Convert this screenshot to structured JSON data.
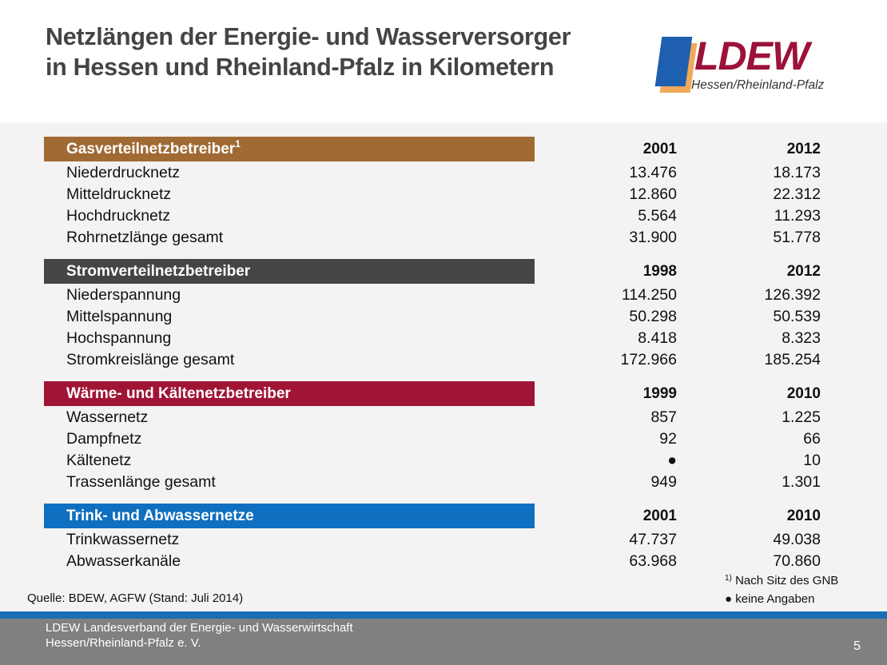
{
  "header": {
    "title_line1": "Netzlängen der Energie- und Wasserversorger",
    "title_line2": "in Hessen und Rheinland-Pfalz in Kilometern",
    "logo": {
      "text": "LDEW",
      "subtitle": "Hessen/Rheinland-Pfalz",
      "colors": {
        "text": "#9c1238",
        "blue": "#1f5fb0",
        "orange": "#f1a95a"
      }
    }
  },
  "sections": [
    {
      "title": "Gasverteilnetzbetreiber",
      "footnote_mark": "1",
      "color": "#a06a35",
      "years": [
        "2001",
        "2012"
      ],
      "rows": [
        {
          "label": "Niederdrucknetz",
          "v1": "13.476",
          "v2": "18.173"
        },
        {
          "label": "Mitteldrucknetz",
          "v1": "12.860",
          "v2": "22.312"
        },
        {
          "label": "Hochdrucknetz",
          "v1": "5.564",
          "v2": "11.293"
        },
        {
          "label": "Rohrnetzlänge gesamt",
          "v1": "31.900",
          "v2": "51.778"
        }
      ]
    },
    {
      "title": "Stromverteilnetzbetreiber",
      "footnote_mark": "",
      "color": "#454545",
      "years": [
        "1998",
        "2012"
      ],
      "rows": [
        {
          "label": "Niederspannung",
          "v1": "114.250",
          "v2": "126.392"
        },
        {
          "label": "Mittelspannung",
          "v1": "50.298",
          "v2": "50.539"
        },
        {
          "label": "Hochspannung",
          "v1": "8.418",
          "v2": "8.323"
        },
        {
          "label": "Stromkreislänge gesamt",
          "v1": "172.966",
          "v2": "185.254"
        }
      ]
    },
    {
      "title": "Wärme- und Kältenetzbetreiber",
      "footnote_mark": "",
      "color": "#a01535",
      "years": [
        "1999",
        "2010"
      ],
      "rows": [
        {
          "label": "Wassernetz",
          "v1": "857",
          "v2": "1.225"
        },
        {
          "label": "Dampfnetz",
          "v1": "92",
          "v2": "66"
        },
        {
          "label": "Kältenetz",
          "v1": "●",
          "v2": "10"
        },
        {
          "label": "Trassenlänge gesamt",
          "v1": "949",
          "v2": "1.301"
        }
      ]
    },
    {
      "title": "Trink- und Abwassernetze",
      "footnote_mark": "",
      "color": "#0f6fc0",
      "years": [
        "2001",
        "2010"
      ],
      "rows": [
        {
          "label": "Trinkwassernetz",
          "v1": "47.737",
          "v2": "49.038"
        },
        {
          "label": "Abwasserkanäle",
          "v1": "63.968",
          "v2": "70.860"
        }
      ]
    }
  ],
  "notes": {
    "source": "Quelle: BDEW, AGFW (Stand: Juli 2014)",
    "footnote1_mark": "1)",
    "footnote1_text": "Nach Sitz des GNB",
    "footnote2": "● keine Angaben"
  },
  "footer": {
    "org_line1": "LDEW Landesverband der Energie- und Wasserwirtschaft",
    "org_line2": "Hessen/Rheinland-Pfalz  e. V.",
    "page_number": "5",
    "accent_color": "#1a6eb5"
  }
}
